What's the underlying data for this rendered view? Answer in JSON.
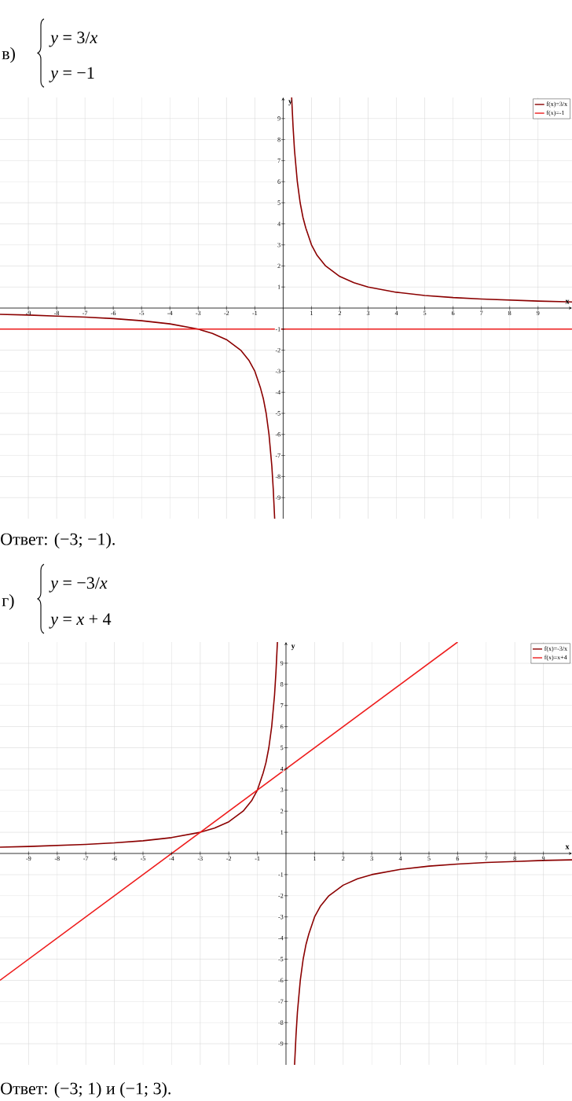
{
  "chart_data": [
    {
      "type": "line",
      "title": "в)",
      "annotations": [
        "*y* = 3/*x*",
        "*y* = −1",
        "Ответ: (−3; −1)."
      ],
      "xlabel": "x",
      "ylabel": "y",
      "series": [
        {
          "name": "f(x)=3/x",
          "color": "#8b0000",
          "x": [
            -10,
            -9,
            -8,
            -7,
            -6,
            -5,
            -4,
            -3,
            -2.5,
            -2,
            -1.5,
            -1.2,
            -1,
            -0.8,
            -0.7,
            -0.6,
            -0.5,
            -0.4,
            -0.35,
            -0.3,
            0,
            0.3,
            0.35,
            0.4,
            0.5,
            0.6,
            0.7,
            0.8,
            1,
            1.2,
            1.5,
            2,
            2.5,
            3,
            4,
            5,
            6,
            7,
            8,
            9,
            10,
            10.2
          ],
          "values": [
            -0.3,
            -0.33,
            -0.38,
            -0.43,
            -0.5,
            -0.6,
            -0.75,
            -1,
            -1.2,
            -1.5,
            -2,
            -2.5,
            -3,
            -3.8,
            -4.3,
            -5,
            -6,
            -7.5,
            -8.6,
            -10,
            null,
            10,
            8.6,
            7.5,
            6,
            5,
            4.3,
            3.8,
            3,
            2.5,
            2,
            1.5,
            1.2,
            1,
            0.75,
            0.6,
            0.5,
            0.43,
            0.38,
            0.33,
            0.3,
            0.29
          ]
        },
        {
          "name": "f(x)=-1",
          "color": "#ee1c1c",
          "x": [
            -10,
            10.2
          ],
          "values": [
            -1,
            -1
          ]
        }
      ],
      "xlim": [
        -10,
        10.2
      ],
      "ylim": [
        -10,
        10
      ],
      "xticks": [
        -9,
        -8,
        -7,
        -6,
        -5,
        -4,
        -3,
        -2,
        -1,
        1,
        2,
        3,
        4,
        5,
        6,
        7,
        8,
        9
      ],
      "yticks": [
        -9,
        -8,
        -7,
        -6,
        -5,
        -4,
        -3,
        -2,
        -1,
        1,
        2,
        3,
        4,
        5,
        6,
        7,
        8,
        9
      ],
      "grid": true,
      "legend": "top right"
    },
    {
      "type": "line",
      "title": "г)",
      "annotations": [
        "*y* = −3/*x*",
        "*y* = *x* + 4",
        "Ответ: (−3; 1) и (−1; 3)."
      ],
      "xlabel": "x",
      "ylabel": "y",
      "series": [
        {
          "name": "f(x)=-3/x",
          "color": "#8b0000",
          "x": [
            -10,
            -9,
            -8,
            -7,
            -6,
            -5,
            -4,
            -3,
            -2.5,
            -2,
            -1.5,
            -1.2,
            -1,
            -0.8,
            -0.7,
            -0.6,
            -0.5,
            -0.4,
            -0.35,
            -0.3,
            0,
            0.3,
            0.35,
            0.4,
            0.5,
            0.6,
            0.7,
            0.8,
            1,
            1.2,
            1.5,
            2,
            2.5,
            3,
            4,
            5,
            6,
            7,
            8,
            9,
            10
          ],
          "values": [
            0.3,
            0.33,
            0.38,
            0.43,
            0.5,
            0.6,
            0.75,
            1,
            1.2,
            1.5,
            2,
            2.5,
            3,
            3.8,
            4.3,
            5,
            6,
            7.5,
            8.6,
            10,
            null,
            -10,
            -8.6,
            -7.5,
            -6,
            -5,
            -4.3,
            -3.8,
            -3,
            -2.5,
            -2,
            -1.5,
            -1.2,
            -1,
            -0.75,
            -0.6,
            -0.5,
            -0.43,
            -0.38,
            -0.33,
            -0.3
          ]
        },
        {
          "name": "f(x)=x+4",
          "color": "#ee1c1c",
          "x": [
            -10,
            6
          ],
          "values": [
            -6,
            10
          ]
        }
      ],
      "xlim": [
        -10,
        10
      ],
      "ylim": [
        -10,
        10
      ],
      "xticks": [
        -9,
        -8,
        -7,
        -6,
        -5,
        -4,
        -3,
        -2,
        -1,
        1,
        2,
        3,
        4,
        5,
        6,
        7,
        8,
        9
      ],
      "yticks": [
        -9,
        -8,
        -7,
        -6,
        -5,
        -4,
        -3,
        -2,
        -1,
        1,
        2,
        3,
        4,
        5,
        6,
        7,
        8,
        9
      ],
      "grid": true,
      "legend": "top right"
    }
  ]
}
